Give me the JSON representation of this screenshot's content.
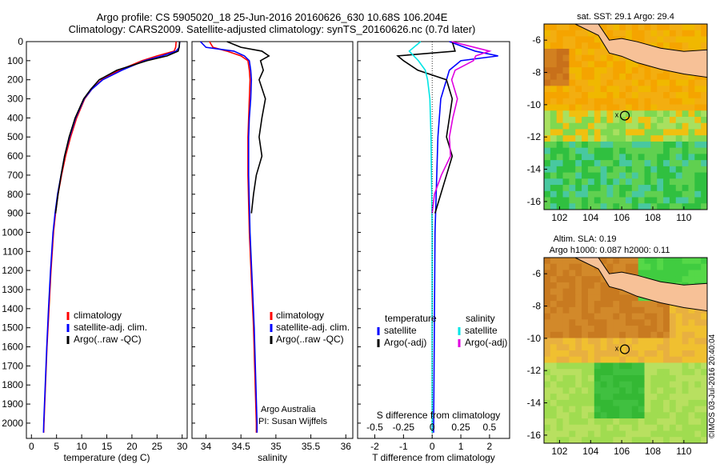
{
  "header": {
    "line1": "Argo profile: CS 5905020_18 25-Jun-2016 20160626_630 10.68S 106.204E",
    "line2": "Climatology: CARS2009. Satellite-adjusted climatology: synTS_20160626.nc (0.7d later)"
  },
  "credit": "©IMOS 03-Jul-2016 20:40:04",
  "colors": {
    "climatology": "#ff0000",
    "satellite": "#0000ff",
    "argo": "#000000",
    "sal_satellite": "#00e5e5",
    "sal_argo": "#e000e0"
  },
  "chart_data": [
    {
      "type": "line",
      "xlabel": "temperature (deg C)",
      "ylabel": "",
      "ylim": [
        2080,
        0
      ],
      "xlim": [
        -1,
        31
      ],
      "xticks": [
        "0",
        "5",
        "10",
        "15",
        "20",
        "25",
        "30"
      ],
      "yticks": [
        "0",
        "100",
        "200",
        "300",
        "400",
        "500",
        "600",
        "700",
        "800",
        "900",
        "1000",
        "1100",
        "1200",
        "1300",
        "1400",
        "1500",
        "1600",
        "1700",
        "1800",
        "1900",
        "2000"
      ],
      "legend": [
        "climatology",
        "satellite-adj. clim.",
        "Argo(..raw -QC)"
      ],
      "legend_placement": "lower-right",
      "series": [
        {
          "name": "climatology",
          "depth": [
            0,
            30,
            50,
            75,
            100,
            150,
            200,
            250,
            300,
            400,
            500,
            600,
            700,
            800,
            900,
            1000,
            1200,
            1400,
            1600,
            1800,
            2000,
            2050
          ],
          "values": [
            28.8,
            28.7,
            28.4,
            25,
            22,
            17.5,
            14,
            12,
            10.6,
            9,
            7.8,
            6.8,
            6,
            5.3,
            4.8,
            4.4,
            3.9,
            3.5,
            3.1,
            2.8,
            2.5,
            2.45
          ]
        },
        {
          "name": "satellite-adj. clim.",
          "depth": [
            0,
            30,
            50,
            75,
            100,
            150,
            200,
            250,
            300,
            400,
            500,
            600,
            700,
            800,
            900,
            1000,
            1200,
            1400,
            1600,
            1800,
            2000,
            2050
          ],
          "values": [
            29.5,
            29.4,
            28.8,
            26,
            22.5,
            18,
            14.2,
            12,
            10.5,
            8.8,
            7.6,
            6.6,
            5.9,
            5.2,
            4.7,
            4.3,
            3.8,
            3.4,
            3.05,
            2.75,
            2.45,
            2.4
          ]
        },
        {
          "name": "Argo(..raw -QC)",
          "depth": [
            0,
            30,
            50,
            75,
            100,
            150,
            200,
            250,
            300,
            400,
            500,
            600,
            700,
            800,
            900
          ],
          "values": [
            29.5,
            29.4,
            29.2,
            27,
            23,
            17,
            13.5,
            11.8,
            10.4,
            8.7,
            7.5,
            6.6,
            5.9,
            5.3,
            4.8
          ]
        }
      ]
    },
    {
      "type": "line",
      "xlabel": "salinity",
      "ylim": [
        2080,
        0
      ],
      "xlim": [
        33.8,
        36.1
      ],
      "xticks": [
        "34",
        "34.5",
        "35",
        "35.5",
        "36"
      ],
      "legend": [
        "climatology",
        "satellite-adj. clim.",
        "Argo(..raw -QC)"
      ],
      "legend_placement": "lower-right",
      "annotation": [
        "Argo Australia",
        "PI: Susan Wijffels"
      ],
      "series": [
        {
          "name": "climatology",
          "depth": [
            0,
            30,
            50,
            75,
            100,
            150,
            200,
            300,
            400,
            500,
            700,
            1000,
            1500,
            2000,
            2050
          ],
          "values": [
            34.05,
            34.1,
            34.3,
            34.5,
            34.6,
            34.62,
            34.63,
            34.62,
            34.61,
            34.6,
            34.6,
            34.62,
            34.68,
            34.72,
            34.72
          ]
        },
        {
          "name": "satellite-adj. clim.",
          "depth": [
            0,
            30,
            50,
            75,
            100,
            150,
            200,
            300,
            400,
            500,
            700,
            1000,
            1500,
            2000,
            2050
          ],
          "values": [
            33.92,
            34.0,
            34.4,
            34.55,
            34.62,
            34.64,
            34.65,
            34.64,
            34.62,
            34.61,
            34.61,
            34.63,
            34.69,
            34.73,
            34.73
          ]
        },
        {
          "name": "Argo(..raw -QC)",
          "depth": [
            0,
            30,
            50,
            75,
            100,
            150,
            200,
            300,
            400,
            500,
            600,
            700,
            800,
            900
          ],
          "values": [
            34.3,
            34.5,
            34.8,
            34.9,
            34.78,
            34.82,
            34.76,
            34.85,
            34.8,
            34.76,
            34.8,
            34.72,
            34.68,
            34.65
          ]
        }
      ]
    },
    {
      "type": "line",
      "xlabel": "T difference from climatology",
      "xlabel_top": "S difference from climatology",
      "ylim": [
        2080,
        0
      ],
      "xlim": [
        -2.6,
        2.7
      ],
      "xticks": [
        "-2",
        "-1",
        "0",
        "1",
        "2"
      ],
      "xticks_top": [
        "-0.5",
        "-0.25",
        "0",
        "0.25",
        "0.5"
      ],
      "legend_groups": [
        {
          "title": "temperature",
          "items": [
            "satellite",
            "Argo(-adj)"
          ]
        },
        {
          "title": "salinity",
          "items": [
            "satellite",
            "Argo(-adj)"
          ]
        }
      ],
      "series": [
        {
          "name": "satellite",
          "group": "temperature",
          "depth": [
            0,
            50,
            75,
            100,
            150,
            200,
            250,
            300,
            500,
            1000,
            2050
          ],
          "values": [
            0.6,
            1.5,
            2.3,
            1.0,
            0.6,
            0.5,
            0.4,
            0.3,
            0.2,
            0.1,
            0.05
          ]
        },
        {
          "name": "Argo(-adj)",
          "group": "temperature",
          "depth": [
            0,
            50,
            75,
            100,
            150,
            200,
            250,
            300,
            400,
            500,
            600,
            700,
            800,
            900
          ],
          "values": [
            0.7,
            0.8,
            -1.2,
            -1.0,
            -0.5,
            0.5,
            0.6,
            0.7,
            0.6,
            0.5,
            0.7,
            0.5,
            0.3,
            0.1
          ]
        },
        {
          "name": "satellite",
          "group": "salinity",
          "depth": [
            0,
            50,
            100,
            150,
            200,
            300,
            500,
            1000,
            2050
          ],
          "values": [
            -0.1,
            -0.2,
            -0.12,
            -0.06,
            -0.04,
            -0.02,
            -0.01,
            0.0,
            0.0
          ]
        },
        {
          "name": "Argo(-adj)",
          "group": "salinity",
          "depth": [
            0,
            50,
            75,
            100,
            150,
            200,
            300,
            400,
            500,
            600,
            700,
            800,
            900
          ],
          "values": [
            0.17,
            0.5,
            0.38,
            0.36,
            0.2,
            0.17,
            0.22,
            0.18,
            0.15,
            0.16,
            0.08,
            0.02,
            0.0
          ]
        }
      ]
    },
    {
      "type": "heatmap",
      "title": "sat. SST: 29.1  Argo: 29.4",
      "xticks": [
        "102",
        "104",
        "106",
        "108",
        "110"
      ],
      "yticks": [
        "-6",
        "-8",
        "-10",
        "-12",
        "-14",
        "-16"
      ],
      "xlim": [
        101,
        111.5
      ],
      "ylim": [
        -16.5,
        -5
      ],
      "marker": {
        "label": "x",
        "lon": 106.2,
        "lat": -10.68
      }
    },
    {
      "type": "heatmap",
      "title": "Altim. SLA: 0.19",
      "subtitle": "Argo h1000: 0.087 h2000: 0.11",
      "xticks": [
        "102",
        "104",
        "106",
        "108",
        "110"
      ],
      "yticks": [
        "-6",
        "-8",
        "-10",
        "-12",
        "-14",
        "-16"
      ],
      "xlim": [
        101,
        111.5
      ],
      "ylim": [
        -16.5,
        -5
      ],
      "marker": {
        "label": "x",
        "lon": 106.2,
        "lat": -10.68
      }
    }
  ]
}
